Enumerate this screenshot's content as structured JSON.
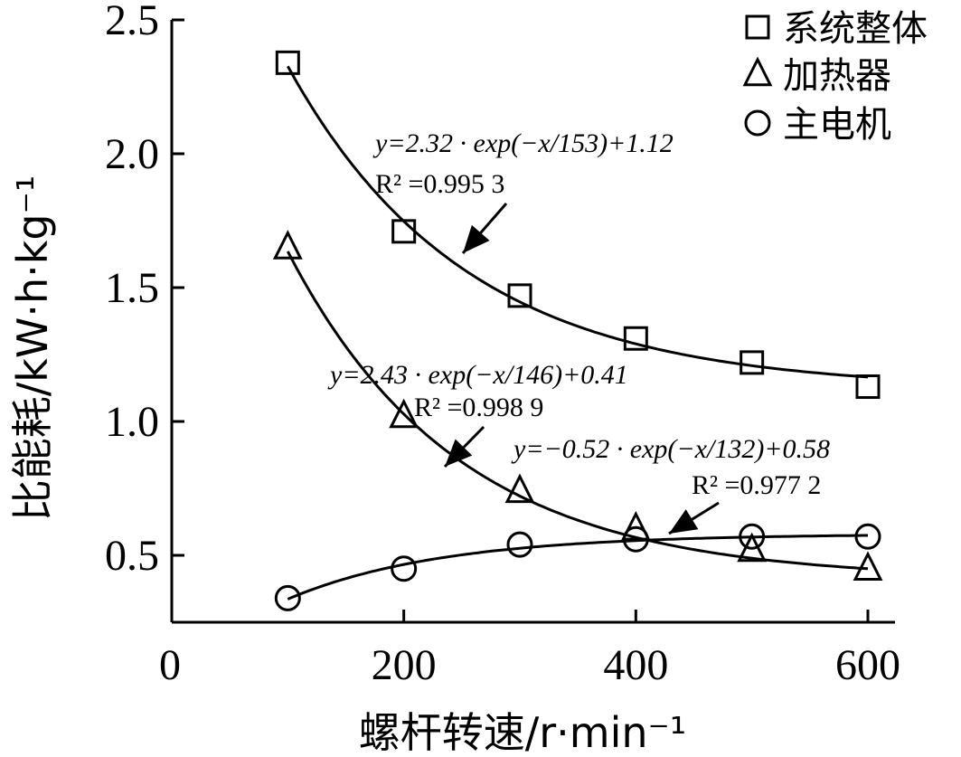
{
  "chart_data": {
    "type": "scatter",
    "xlabel": "螺杆转速/r·min⁻¹",
    "ylabel": "比能耗/kW·h·kg⁻¹",
    "xlim": [
      0,
      600
    ],
    "ylim": [
      0.25,
      2.5
    ],
    "x_ticks": [
      {
        "value": 0,
        "label": "0"
      },
      {
        "value": 200,
        "label": "200"
      },
      {
        "value": 400,
        "label": "400"
      },
      {
        "value": 600,
        "label": "600"
      }
    ],
    "y_ticks": [
      {
        "value": 0.5,
        "label": "0.5"
      },
      {
        "value": 1.0,
        "label": "1.0"
      },
      {
        "value": 1.5,
        "label": "1.5"
      },
      {
        "value": 2.0,
        "label": "2.0"
      },
      {
        "value": 2.5,
        "label": "2.5"
      }
    ],
    "grid": false,
    "legend_position": "top-right",
    "series": [
      {
        "name": "系统整体",
        "marker": "square",
        "color": "#000000",
        "points": [
          [
            100,
            2.34
          ],
          [
            200,
            1.71
          ],
          [
            300,
            1.47
          ],
          [
            400,
            1.31
          ],
          [
            500,
            1.22
          ],
          [
            600,
            1.13
          ]
        ],
        "fit": {
          "a": 2.32,
          "b": 153,
          "c": 1.12
        },
        "equation": "y=2.32 · exp(−x/153)+1.12",
        "r2": "R² =0.995 3"
      },
      {
        "name": "加热器",
        "marker": "triangle",
        "color": "#000000",
        "points": [
          [
            100,
            1.65
          ],
          [
            200,
            1.02
          ],
          [
            300,
            0.74
          ],
          [
            400,
            0.6
          ],
          [
            500,
            0.52
          ],
          [
            600,
            0.45
          ]
        ],
        "fit": {
          "a": 2.43,
          "b": 146,
          "c": 0.41
        },
        "equation": "y=2.43 · exp(−x/146)+0.41",
        "r2": "R²  =0.998 9"
      },
      {
        "name": "主电机",
        "marker": "circle",
        "color": "#000000",
        "points": [
          [
            100,
            0.34
          ],
          [
            200,
            0.45
          ],
          [
            300,
            0.54
          ],
          [
            400,
            0.56
          ],
          [
            500,
            0.57
          ],
          [
            600,
            0.57
          ]
        ],
        "fit": {
          "a": -0.52,
          "b": 132,
          "c": 0.58
        },
        "equation": "y=−0.52 · exp(−x/132)+0.58",
        "r2": "R² =0.977 2"
      }
    ]
  }
}
